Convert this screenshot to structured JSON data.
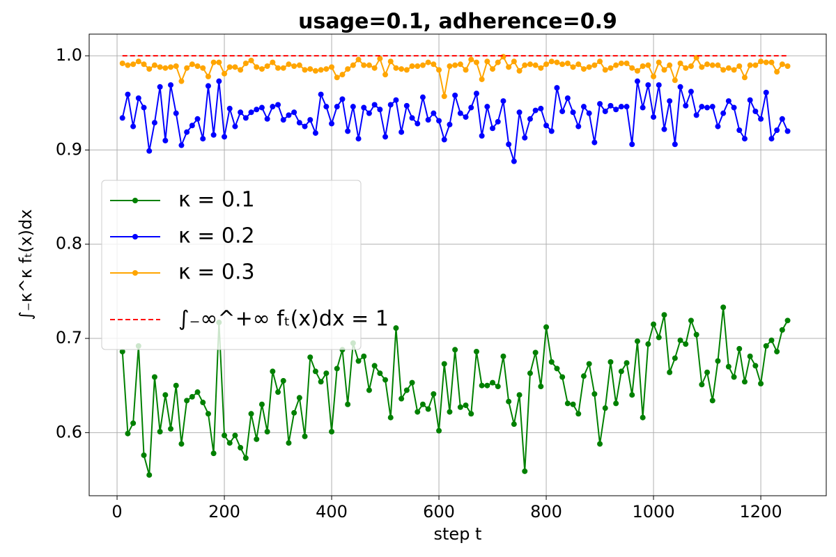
{
  "chart_data": {
    "type": "line",
    "title": "usage=0.1, adherence=0.9",
    "xlabel": "step t",
    "ylabel": "∫₋κ^κ fₜ(x)dx",
    "x": [
      10,
      20,
      30,
      40,
      50,
      60,
      70,
      80,
      90,
      100,
      110,
      120,
      130,
      140,
      150,
      160,
      170,
      180,
      190,
      200,
      210,
      220,
      230,
      240,
      250,
      260,
      270,
      280,
      290,
      300,
      310,
      320,
      330,
      340,
      350,
      360,
      370,
      380,
      390,
      400,
      410,
      420,
      430,
      440,
      450,
      460,
      470,
      480,
      490,
      500,
      510,
      520,
      530,
      540,
      550,
      560,
      570,
      580,
      590,
      600,
      610,
      620,
      630,
      640,
      650,
      660,
      670,
      680,
      690,
      700,
      710,
      720,
      730,
      740,
      750,
      760,
      770,
      780,
      790,
      800,
      810,
      820,
      830,
      840,
      850,
      860,
      870,
      880,
      890,
      900,
      910,
      920,
      930,
      940,
      950,
      960,
      970,
      980,
      990,
      1000,
      1010,
      1020,
      1030,
      1040,
      1050,
      1060,
      1070,
      1080,
      1090,
      1100,
      1110,
      1120,
      1130,
      1140,
      1150,
      1160,
      1170,
      1180,
      1190,
      1200,
      1210,
      1220,
      1230,
      1240,
      1250
    ],
    "series": [
      {
        "name": "κ =  0.1",
        "color": "#008000",
        "marker": true,
        "dashed": false,
        "values": [
          0.686,
          0.599,
          0.61,
          0.692,
          0.576,
          0.555,
          0.659,
          0.601,
          0.64,
          0.604,
          0.65,
          0.588,
          0.634,
          0.638,
          0.643,
          0.632,
          0.62,
          0.578,
          0.717,
          0.597,
          0.589,
          0.597,
          0.584,
          0.573,
          0.62,
          0.593,
          0.63,
          0.601,
          0.665,
          0.643,
          0.655,
          0.589,
          0.621,
          0.637,
          0.596,
          0.68,
          0.665,
          0.654,
          0.663,
          0.601,
          0.668,
          0.688,
          0.63,
          0.695,
          0.676,
          0.681,
          0.645,
          0.671,
          0.663,
          0.656,
          0.616,
          0.711,
          0.636,
          0.645,
          0.653,
          0.622,
          0.63,
          0.625,
          0.641,
          0.602,
          0.673,
          0.622,
          0.688,
          0.627,
          0.629,
          0.62,
          0.686,
          0.65,
          0.65,
          0.653,
          0.649,
          0.681,
          0.633,
          0.609,
          0.64,
          0.559,
          0.663,
          0.685,
          0.649,
          0.712,
          0.675,
          0.668,
          0.659,
          0.631,
          0.63,
          0.62,
          0.66,
          0.673,
          0.641,
          0.588,
          0.626,
          0.675,
          0.631,
          0.665,
          0.674,
          0.64,
          0.697,
          0.616,
          0.694,
          0.715,
          0.701,
          0.725,
          0.664,
          0.679,
          0.698,
          0.694,
          0.719,
          0.704,
          0.651,
          0.664,
          0.634,
          0.676,
          0.733,
          0.67,
          0.659,
          0.689,
          0.654,
          0.681,
          0.671,
          0.652,
          0.692,
          0.698,
          0.686,
          0.709,
          0.719
        ]
      },
      {
        "name": "κ =  0.2",
        "color": "#0000ff",
        "marker": true,
        "dashed": false,
        "values": [
          0.934,
          0.959,
          0.925,
          0.955,
          0.945,
          0.899,
          0.929,
          0.967,
          0.91,
          0.969,
          0.939,
          0.905,
          0.919,
          0.926,
          0.933,
          0.912,
          0.968,
          0.916,
          0.973,
          0.914,
          0.944,
          0.925,
          0.94,
          0.934,
          0.94,
          0.943,
          0.945,
          0.933,
          0.946,
          0.948,
          0.932,
          0.937,
          0.94,
          0.929,
          0.925,
          0.932,
          0.918,
          0.959,
          0.946,
          0.928,
          0.946,
          0.954,
          0.92,
          0.946,
          0.912,
          0.945,
          0.939,
          0.948,
          0.943,
          0.914,
          0.948,
          0.953,
          0.919,
          0.947,
          0.934,
          0.928,
          0.956,
          0.932,
          0.939,
          0.931,
          0.911,
          0.927,
          0.958,
          0.939,
          0.935,
          0.945,
          0.96,
          0.915,
          0.946,
          0.923,
          0.93,
          0.952,
          0.906,
          0.888,
          0.94,
          0.913,
          0.933,
          0.942,
          0.944,
          0.926,
          0.92,
          0.966,
          0.941,
          0.955,
          0.94,
          0.925,
          0.946,
          0.939,
          0.908,
          0.949,
          0.941,
          0.947,
          0.943,
          0.946,
          0.946,
          0.906,
          0.973,
          0.945,
          0.969,
          0.935,
          0.969,
          0.922,
          0.952,
          0.906,
          0.967,
          0.947,
          0.962,
          0.937,
          0.946,
          0.945,
          0.946,
          0.925,
          0.939,
          0.952,
          0.945,
          0.921,
          0.912,
          0.953,
          0.941,
          0.933,
          0.961,
          0.912,
          0.921,
          0.933,
          0.92
        ]
      },
      {
        "name": "κ =  0.3",
        "color": "#ffa500",
        "marker": true,
        "dashed": false,
        "values": [
          0.992,
          0.99,
          0.991,
          0.994,
          0.991,
          0.986,
          0.99,
          0.988,
          0.987,
          0.988,
          0.989,
          0.973,
          0.987,
          0.991,
          0.989,
          0.987,
          0.978,
          0.993,
          0.993,
          0.981,
          0.988,
          0.988,
          0.985,
          0.992,
          0.995,
          0.988,
          0.986,
          0.989,
          0.993,
          0.987,
          0.987,
          0.991,
          0.989,
          0.99,
          0.985,
          0.986,
          0.984,
          0.985,
          0.986,
          0.988,
          0.977,
          0.98,
          0.986,
          0.99,
          0.996,
          0.99,
          0.99,
          0.987,
          0.997,
          0.98,
          0.994,
          0.987,
          0.986,
          0.985,
          0.989,
          0.989,
          0.99,
          0.993,
          0.991,
          0.985,
          0.957,
          0.989,
          0.99,
          0.991,
          0.985,
          0.996,
          0.993,
          0.975,
          0.994,
          0.986,
          0.993,
          0.999,
          0.988,
          0.994,
          0.984,
          0.99,
          0.991,
          0.99,
          0.987,
          0.991,
          0.994,
          0.993,
          0.991,
          0.992,
          0.988,
          0.991,
          0.986,
          0.988,
          0.99,
          0.994,
          0.985,
          0.987,
          0.99,
          0.992,
          0.992,
          0.987,
          0.984,
          0.989,
          0.99,
          0.978,
          0.993,
          0.985,
          0.99,
          0.974,
          0.992,
          0.987,
          0.989,
          0.998,
          0.988,
          0.991,
          0.99,
          0.99,
          0.985,
          0.987,
          0.985,
          0.989,
          0.977,
          0.99,
          0.99,
          0.994,
          0.993,
          0.993,
          0.983,
          0.991,
          0.989
        ]
      },
      {
        "name": "∫₋∞^+∞ fₜ(x)dx = 1",
        "color": "#ff0000",
        "marker": false,
        "dashed": true,
        "x": [
          10,
          1250
        ],
        "values": [
          1,
          1
        ]
      }
    ],
    "xlim": [
      -52,
      1322
    ],
    "ylim": [
      0.533,
      1.023
    ],
    "xticks": [
      0,
      200,
      400,
      600,
      800,
      1000,
      1200
    ],
    "yticks": [
      0.6,
      0.7,
      0.8,
      0.9,
      {
        "value": 1,
        "label": "1.0"
      }
    ],
    "grid": true,
    "legend": "center left"
  }
}
